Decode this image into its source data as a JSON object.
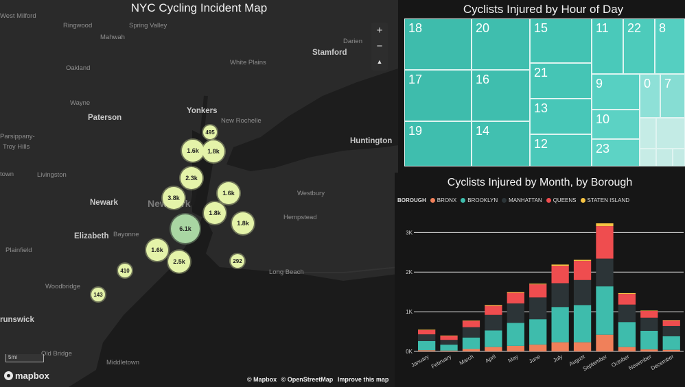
{
  "map": {
    "title": "NYC Cycling Incident Map",
    "zoom_in": "+",
    "zoom_out": "−",
    "compass": "▲",
    "scale_label": "5mi",
    "logo_text": "mapbox",
    "attribution": [
      "© Mapbox",
      "© OpenStreetMap",
      "Improve this map"
    ],
    "places": [
      {
        "name": "West Milford",
        "style": "small"
      },
      {
        "name": "Ringwood",
        "style": "small"
      },
      {
        "name": "Spring Valley",
        "style": "small"
      },
      {
        "name": "Mahwah",
        "style": "small"
      },
      {
        "name": "Oakland",
        "style": "small"
      },
      {
        "name": "White Plains",
        "style": "small"
      },
      {
        "name": "Stamford",
        "style": "bold"
      },
      {
        "name": "Darien",
        "style": "small"
      },
      {
        "name": "Wayne",
        "style": "small"
      },
      {
        "name": "Paterson",
        "style": "bold"
      },
      {
        "name": "Yonkers",
        "style": "bold"
      },
      {
        "name": "New Rochelle",
        "style": "small"
      },
      {
        "name": "Parsippany-",
        "style": "small"
      },
      {
        "name": "Troy Hills",
        "style": "small"
      },
      {
        "name": "Huntington",
        "style": "bold"
      },
      {
        "name": "Livingston",
        "style": "small"
      },
      {
        "name": "town",
        "style": "small"
      },
      {
        "name": "Westbury",
        "style": "small"
      },
      {
        "name": "Newark",
        "style": "bold"
      },
      {
        "name": "New York",
        "style": "big"
      },
      {
        "name": "Hempstead",
        "style": "small"
      },
      {
        "name": "Elizabeth",
        "style": "bold"
      },
      {
        "name": "Bayonne",
        "style": "small"
      },
      {
        "name": "Plainfield",
        "style": "small"
      },
      {
        "name": "Long Beach",
        "style": "small"
      },
      {
        "name": "Woodbridge",
        "style": "small"
      },
      {
        "name": "runswick",
        "style": "bold"
      },
      {
        "name": "Old Bridge",
        "style": "small"
      },
      {
        "name": "Middletown",
        "style": "small"
      }
    ],
    "clusters": [
      {
        "label": "495",
        "size": "s"
      },
      {
        "label": "1.6k",
        "size": "m"
      },
      {
        "label": "1.8k",
        "size": "m"
      },
      {
        "label": "2.3k",
        "size": "m"
      },
      {
        "label": "3.8k",
        "size": "m"
      },
      {
        "label": "1.6k",
        "size": "m"
      },
      {
        "label": "1.8k",
        "size": "m"
      },
      {
        "label": "1.8k",
        "size": "m"
      },
      {
        "label": "6.1k",
        "size": "l"
      },
      {
        "label": "1.6k",
        "size": "m"
      },
      {
        "label": "2.5k",
        "size": "m"
      },
      {
        "label": "292",
        "size": "s"
      },
      {
        "label": "410",
        "size": "s"
      },
      {
        "label": "143",
        "size": "s"
      }
    ]
  },
  "treemap": {
    "title": "Cyclists Injured by Hour of Day",
    "cells": [
      "18",
      "20",
      "15",
      "11",
      "22",
      "8",
      "17",
      "16",
      "21",
      "9",
      "0",
      "7",
      "19",
      "14",
      "13",
      "10",
      "12",
      "23",
      "",
      "",
      " ",
      "",
      ""
    ]
  },
  "colors": {
    "bronx": "#f0805a",
    "brooklyn": "#3ebcac",
    "manhattan": "#2c3437",
    "queens": "#ef4d4f",
    "staten_island": "#f6c343",
    "cluster": "#e4f3a9",
    "cluster_big": "#a9d6a3"
  },
  "chart_data": {
    "type": "bar",
    "stacked": true,
    "title": "Cyclists Injured by Month, by Borough",
    "legend_title": "BOROUGH",
    "legend_position": "top-left",
    "categories": [
      "January",
      "February",
      "March",
      "April",
      "May",
      "June",
      "July",
      "August",
      "September",
      "October",
      "November",
      "December"
    ],
    "y_ticks": [
      "0K",
      "1K",
      "2K",
      "3K"
    ],
    "ylim": [
      0,
      3300
    ],
    "grid": true,
    "series": [
      {
        "name": "BRONX",
        "color": "#f0805a",
        "values": [
          30,
          20,
          60,
          110,
          140,
          170,
          230,
          230,
          420,
          110,
          50,
          40
        ]
      },
      {
        "name": "BROOKLYN",
        "color": "#3ebcac",
        "values": [
          230,
          150,
          290,
          420,
          580,
          640,
          890,
          940,
          1220,
          630,
          470,
          340
        ]
      },
      {
        "name": "MANHATTAN",
        "color": "#2c3437",
        "values": [
          170,
          120,
          260,
          390,
          490,
          550,
          600,
          630,
          700,
          440,
          330,
          260
        ]
      },
      {
        "name": "QUEENS",
        "color": "#ef4d4f",
        "values": [
          110,
          100,
          160,
          230,
          270,
          330,
          440,
          480,
          820,
          270,
          170,
          140
        ]
      },
      {
        "name": "STATEN ISLAND",
        "color": "#f6c343",
        "values": [
          10,
          10,
          10,
          20,
          20,
          20,
          30,
          30,
          70,
          20,
          10,
          10
        ]
      }
    ]
  }
}
